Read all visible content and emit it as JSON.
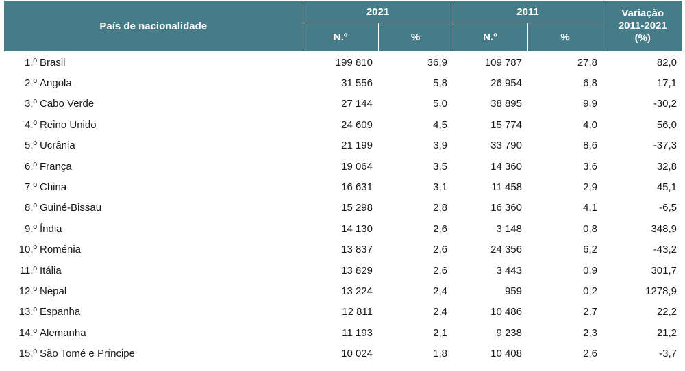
{
  "header": {
    "country": "País de nacionalidade",
    "year_2021": "2021",
    "year_2011": "2011",
    "variation_line1": "Variação",
    "variation_line2": "2011-2021",
    "variation_line3": "(%)",
    "n_label": "N.º",
    "pct_label": "%"
  },
  "rows": [
    {
      "rank": "1.º",
      "country": "Brasil",
      "n2021": "199 810",
      "p2021": "36,9",
      "n2011": "109 787",
      "p2011": "27,8",
      "var": "82,0"
    },
    {
      "rank": "2.º",
      "country": "Angola",
      "n2021": "31 556",
      "p2021": "5,8",
      "n2011": "26 954",
      "p2011": "6,8",
      "var": "17,1"
    },
    {
      "rank": "3.º",
      "country": "Cabo Verde",
      "n2021": "27 144",
      "p2021": "5,0",
      "n2011": "38 895",
      "p2011": "9,9",
      "var": "-30,2"
    },
    {
      "rank": "4.º",
      "country": "Reino Unido",
      "n2021": "24 609",
      "p2021": "4,5",
      "n2011": "15 774",
      "p2011": "4,0",
      "var": "56,0"
    },
    {
      "rank": "5.º",
      "country": "Ucrânia",
      "n2021": "21 199",
      "p2021": "3,9",
      "n2011": "33 790",
      "p2011": "8,6",
      "var": "-37,3"
    },
    {
      "rank": "6.º",
      "country": "França",
      "n2021": "19 064",
      "p2021": "3,5",
      "n2011": "14 360",
      "p2011": "3,6",
      "var": "32,8"
    },
    {
      "rank": "7.º",
      "country": "China",
      "n2021": "16 631",
      "p2021": "3,1",
      "n2011": "11 458",
      "p2011": "2,9",
      "var": "45,1"
    },
    {
      "rank": "8.º",
      "country": "Guiné-Bissau",
      "n2021": "15 298",
      "p2021": "2,8",
      "n2011": "16 360",
      "p2011": "4,1",
      "var": "-6,5"
    },
    {
      "rank": "9.º",
      "country": "Índia",
      "n2021": "14 130",
      "p2021": "2,6",
      "n2011": "3 148",
      "p2011": "0,8",
      "var": "348,9"
    },
    {
      "rank": "10.º",
      "country": "Roménia",
      "n2021": "13 837",
      "p2021": "2,6",
      "n2011": "24 356",
      "p2011": "6,2",
      "var": "-43,2"
    },
    {
      "rank": "11.º",
      "country": "Itália",
      "n2021": "13 829",
      "p2021": "2,6",
      "n2011": "3 443",
      "p2011": "0,9",
      "var": "301,7"
    },
    {
      "rank": "12.º",
      "country": "Nepal",
      "n2021": "13 224",
      "p2021": "2,4",
      "n2011": "959",
      "p2011": "0,2",
      "var": "1278,9"
    },
    {
      "rank": "13.º",
      "country": "Espanha",
      "n2021": "12 811",
      "p2021": "2,4",
      "n2011": "10 486",
      "p2011": "2,7",
      "var": "22,2"
    },
    {
      "rank": "14.º",
      "country": "Alemanha",
      "n2021": "11 193",
      "p2021": "2,1",
      "n2011": "9 238",
      "p2011": "2,3",
      "var": "21,2"
    },
    {
      "rank": "15.º",
      "country": "São Tomé e Príncipe",
      "n2021": "10 024",
      "p2021": "1,8",
      "n2011": "10 408",
      "p2011": "2,6",
      "var": "-3,7"
    }
  ]
}
